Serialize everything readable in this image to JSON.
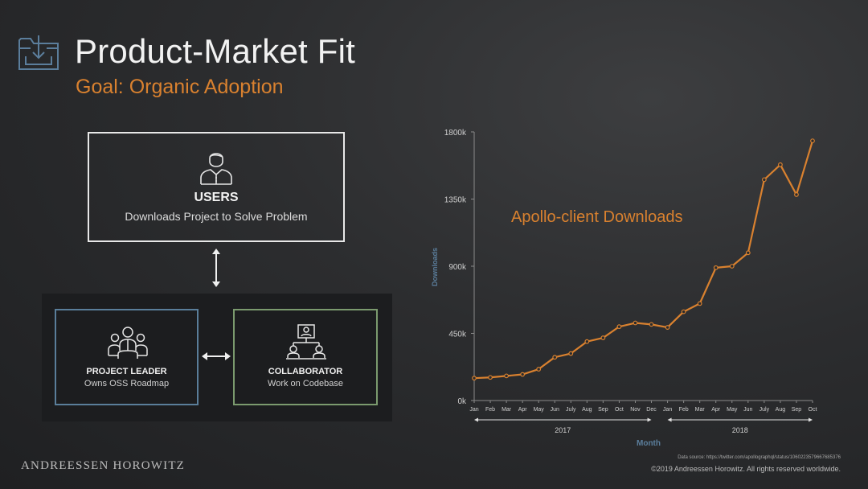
{
  "header": {
    "title": "Product-Market Fit",
    "subtitle": "Goal: Organic Adoption",
    "icon": "download-tray-icon"
  },
  "diagram": {
    "users": {
      "icon": "user-icon",
      "title": "USERS",
      "description": "Downloads Project to Solve Problem"
    },
    "project_leader": {
      "icon": "team-leader-icon",
      "title": "PROJECT LEADER",
      "description": "Owns OSS Roadmap"
    },
    "collaborator": {
      "icon": "org-chart-icon",
      "title": "COLLABORATOR",
      "description": "Work on Codebase"
    }
  },
  "colors": {
    "accent_orange": "#d9812f",
    "axis_blue": "#5b7e9c",
    "leader_border": "#5a7e9a",
    "collaborator_border": "#7b9a6e"
  },
  "chart_data": {
    "type": "line",
    "title": "Apollo-client Downloads",
    "xlabel": "Month",
    "ylabel": "Downloads",
    "yticks": [
      "0k",
      "450k",
      "900k",
      "1350k",
      "1800k"
    ],
    "ylim": [
      0,
      1800000
    ],
    "categories": [
      "Jan",
      "Feb",
      "Mar",
      "Apr",
      "May",
      "Jun",
      "July",
      "Aug",
      "Sep",
      "Oct",
      "Nov",
      "Dec",
      "Jan",
      "Feb",
      "Mar",
      "Apr",
      "May",
      "Jun",
      "July",
      "Aug",
      "Sep",
      "Oct"
    ],
    "groups": [
      {
        "label": "2017",
        "start": 0,
        "end": 11
      },
      {
        "label": "2018",
        "start": 12,
        "end": 21
      }
    ],
    "series": [
      {
        "values": [
          150000,
          155000,
          165000,
          175000,
          210000,
          290000,
          315000,
          395000,
          420000,
          495000,
          520000,
          510000,
          490000,
          595000,
          650000,
          890000,
          900000,
          990000,
          1480000,
          1580000,
          1380000,
          1740000
        ]
      }
    ],
    "grid": false
  },
  "footer": {
    "logo": "ANDREESSEN HOROWITZ",
    "source": "Data source: https://twitter.com/apollographql/status/1060223579667685376",
    "copyright": "©2019 Andreessen Horowitz. All rights reserved worldwide."
  }
}
